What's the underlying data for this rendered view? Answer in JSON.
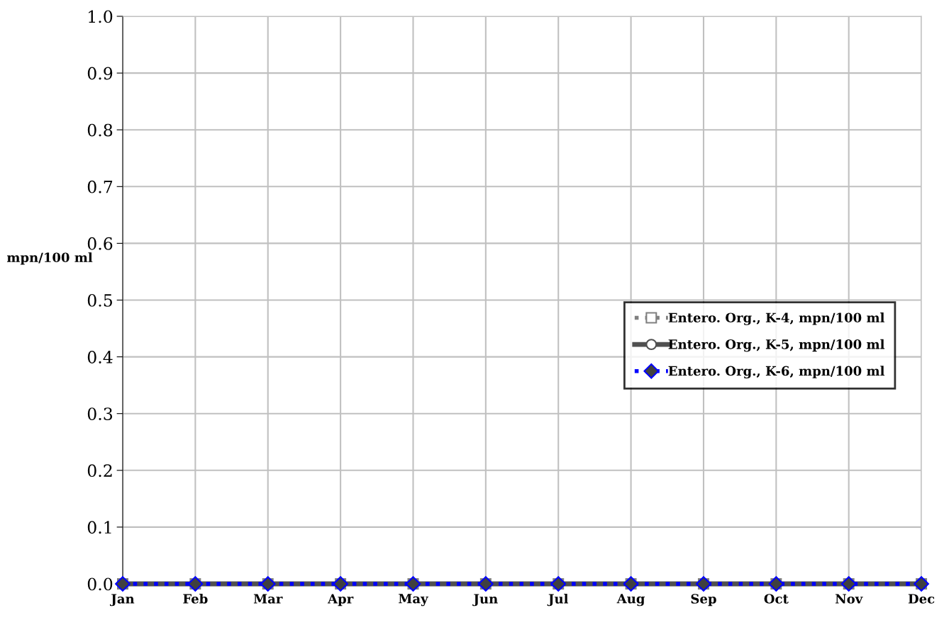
{
  "chart_data": {
    "type": "line",
    "ylabel": "mpn/100 ml",
    "categories": [
      "Jan",
      "Feb",
      "Mar",
      "Apr",
      "May",
      "Jun",
      "Jul",
      "Aug",
      "Sep",
      "Oct",
      "Nov",
      "Dec"
    ],
    "series": [
      {
        "name": "Entero. Org., K-4, mpn/100 ml",
        "color": "#808080",
        "marker": "square",
        "line_style": "dotted",
        "values": [
          0,
          0,
          0,
          0,
          0,
          0,
          0,
          0,
          0,
          0,
          0,
          0
        ]
      },
      {
        "name": "Entero. Org., K-5, mpn/100 ml",
        "color": "#505050",
        "marker": "circle",
        "line_style": "solid",
        "values": [
          0,
          0,
          0,
          0,
          0,
          0,
          0,
          0,
          0,
          0,
          0,
          0
        ]
      },
      {
        "name": "Entero. Org., K-6, mpn/100 ml",
        "color": "#0000ff",
        "marker": "diamond",
        "line_style": "dotted",
        "values": [
          0,
          0,
          0,
          0,
          0,
          0,
          0,
          0,
          0,
          0,
          0,
          0
        ]
      }
    ],
    "ylim": [
      0,
      1
    ],
    "yticks": [
      {
        "value": 0,
        "label": "0.0"
      },
      0.1,
      0.2,
      0.3,
      0.4,
      0.5,
      0.6,
      0.7,
      0.8,
      0.9,
      {
        "value": 1,
        "label": "1.0"
      }
    ],
    "grid": true,
    "legend": "right"
  }
}
